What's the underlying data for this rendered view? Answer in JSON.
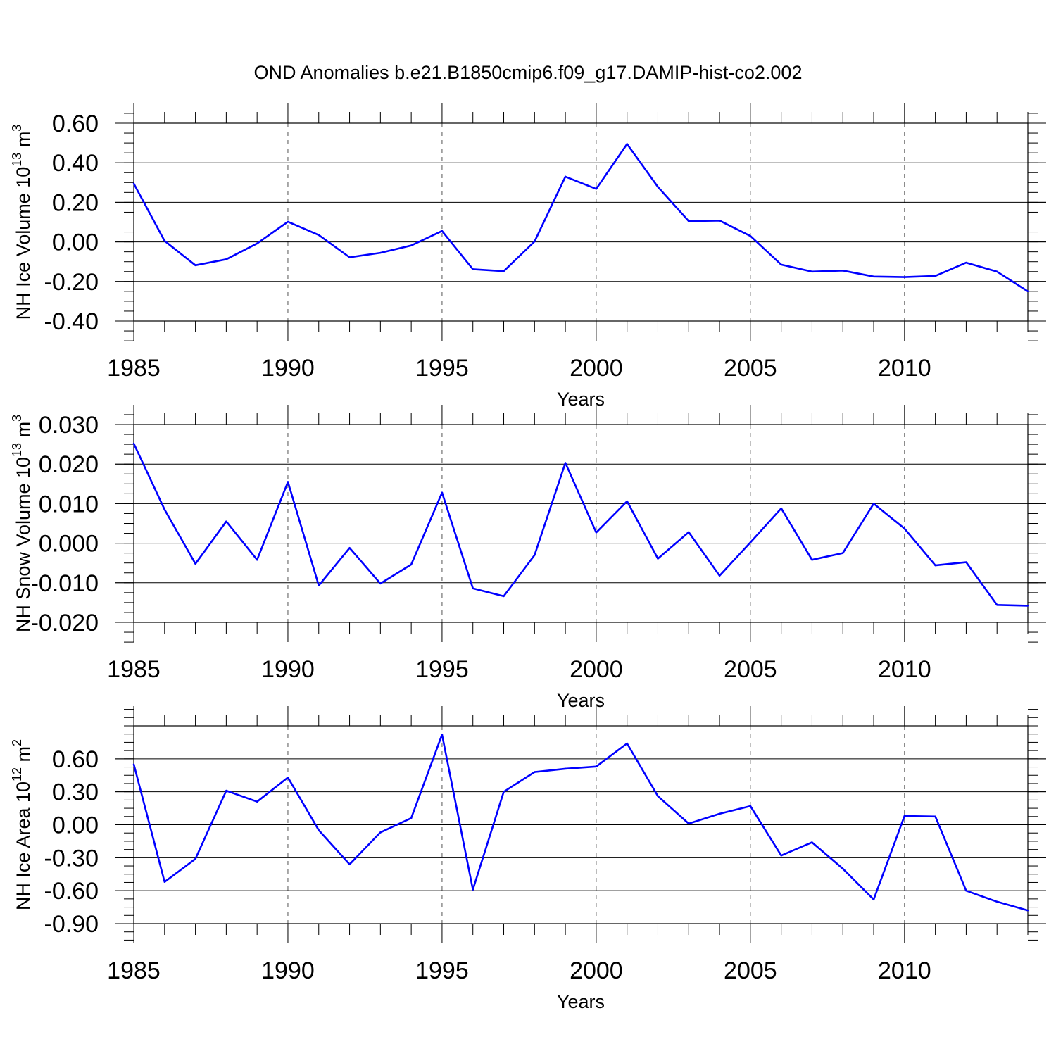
{
  "title": "OND Anomalies b.e21.B1850cmip6.f09_g17.DAMIP-hist-co2.002",
  "colors": {
    "line": "#0000ff",
    "axis": "#000000",
    "grid": "#555555"
  },
  "chart_data": [
    {
      "type": "line",
      "xlabel": "Years",
      "ylabel": "NH Ice Volume 10",
      "ylabel_exp": "13",
      "ylabel_unit": " m",
      "ylabel_unit_exp": "3",
      "xlim": [
        1985,
        2014
      ],
      "ylim": [
        -0.4,
        0.6
      ],
      "xticks": [
        1985,
        1990,
        1995,
        2000,
        2005,
        2010
      ],
      "xtick_labels": [
        "1985",
        "1990",
        "1995",
        "2000",
        "2005",
        "2010"
      ],
      "yticks": [
        -0.4,
        -0.2,
        0.0,
        0.2,
        0.4,
        0.6
      ],
      "ytick_labels": [
        "-0.40",
        "-0.20",
        "0.00",
        "0.20",
        "0.40",
        "0.60"
      ],
      "y_minor_step": 0.05,
      "x": [
        1985,
        1986,
        1987,
        1988,
        1989,
        1990,
        1991,
        1992,
        1993,
        1994,
        1995,
        1996,
        1997,
        1998,
        1999,
        2000,
        2001,
        2002,
        2003,
        2004,
        2005,
        2006,
        2007,
        2008,
        2009,
        2010,
        2011,
        2012,
        2013,
        2014
      ],
      "values": [
        0.295,
        0.005,
        -0.118,
        -0.088,
        -0.008,
        0.102,
        0.035,
        -0.078,
        -0.055,
        -0.018,
        0.055,
        -0.138,
        -0.148,
        0.002,
        0.33,
        0.268,
        0.495,
        0.278,
        0.105,
        0.108,
        0.03,
        -0.115,
        -0.15,
        -0.145,
        -0.175,
        -0.178,
        -0.172,
        -0.105,
        -0.15,
        -0.25
      ]
    },
    {
      "type": "line",
      "xlabel": "Years",
      "ylabel": "NH Snow Volume 10",
      "ylabel_exp": "13",
      "ylabel_unit": " m",
      "ylabel_unit_exp": "3",
      "xlim": [
        1985,
        2014
      ],
      "ylim": [
        -0.02,
        0.03
      ],
      "xticks": [
        1985,
        1990,
        1995,
        2000,
        2005,
        2010
      ],
      "xtick_labels": [
        "1985",
        "1990",
        "1995",
        "2000",
        "2005",
        "2010"
      ],
      "yticks": [
        -0.02,
        -0.01,
        0.0,
        0.01,
        0.02,
        0.03
      ],
      "ytick_labels": [
        "-0.020",
        "-0.010",
        "0.000",
        "0.010",
        "0.020",
        "0.030"
      ],
      "y_minor_step": 0.0025,
      "x": [
        1985,
        1986,
        1987,
        1988,
        1989,
        1990,
        1991,
        1992,
        1993,
        1994,
        1995,
        1996,
        1997,
        1998,
        1999,
        2000,
        2001,
        2002,
        2003,
        2004,
        2005,
        2006,
        2007,
        2008,
        2009,
        2010,
        2011,
        2012,
        2013,
        2014
      ],
      "values": [
        0.0252,
        0.0085,
        -0.0052,
        0.0055,
        -0.0042,
        0.0155,
        -0.0107,
        -0.0012,
        -0.0102,
        -0.0054,
        0.0128,
        -0.0114,
        -0.0134,
        -0.003,
        0.0203,
        0.0027,
        0.0106,
        -0.0039,
        0.0028,
        -0.0082,
        0.0002,
        0.0088,
        -0.0042,
        -0.0025,
        0.01,
        0.0037,
        -0.0056,
        -0.0048,
        -0.0156,
        -0.0158
      ]
    },
    {
      "type": "line",
      "xlabel": "Years",
      "ylabel": "NH Ice Area 10",
      "ylabel_exp": "12",
      "ylabel_unit": " m",
      "ylabel_unit_exp": "2",
      "xlim": [
        1985,
        2014
      ],
      "ylim": [
        -0.9,
        0.9
      ],
      "xticks": [
        1985,
        1990,
        1995,
        2000,
        2005,
        2010
      ],
      "xtick_labels": [
        "1985",
        "1990",
        "1995",
        "2000",
        "2005",
        "2010"
      ],
      "yticks": [
        -0.9,
        -0.6,
        -0.3,
        0.0,
        0.3,
        0.6
      ],
      "ytick_labels": [
        "-0.90",
        "-0.60",
        "-0.30",
        "0.00",
        "0.30",
        "0.60"
      ],
      "y_minor_step": 0.075,
      "x": [
        1985,
        1986,
        1987,
        1988,
        1989,
        1990,
        1991,
        1992,
        1993,
        1994,
        1995,
        1996,
        1997,
        1998,
        1999,
        2000,
        2001,
        2002,
        2003,
        2004,
        2005,
        2006,
        2007,
        2008,
        2009,
        2010,
        2011,
        2012,
        2013,
        2014
      ],
      "values": [
        0.55,
        -0.52,
        -0.31,
        0.31,
        0.21,
        0.43,
        -0.05,
        -0.36,
        -0.07,
        0.06,
        0.82,
        -0.59,
        0.3,
        0.48,
        0.51,
        0.53,
        0.74,
        0.26,
        0.01,
        0.1,
        0.17,
        -0.28,
        -0.16,
        -0.4,
        -0.68,
        0.08,
        0.075,
        -0.6,
        -0.7,
        -0.78
      ]
    }
  ]
}
